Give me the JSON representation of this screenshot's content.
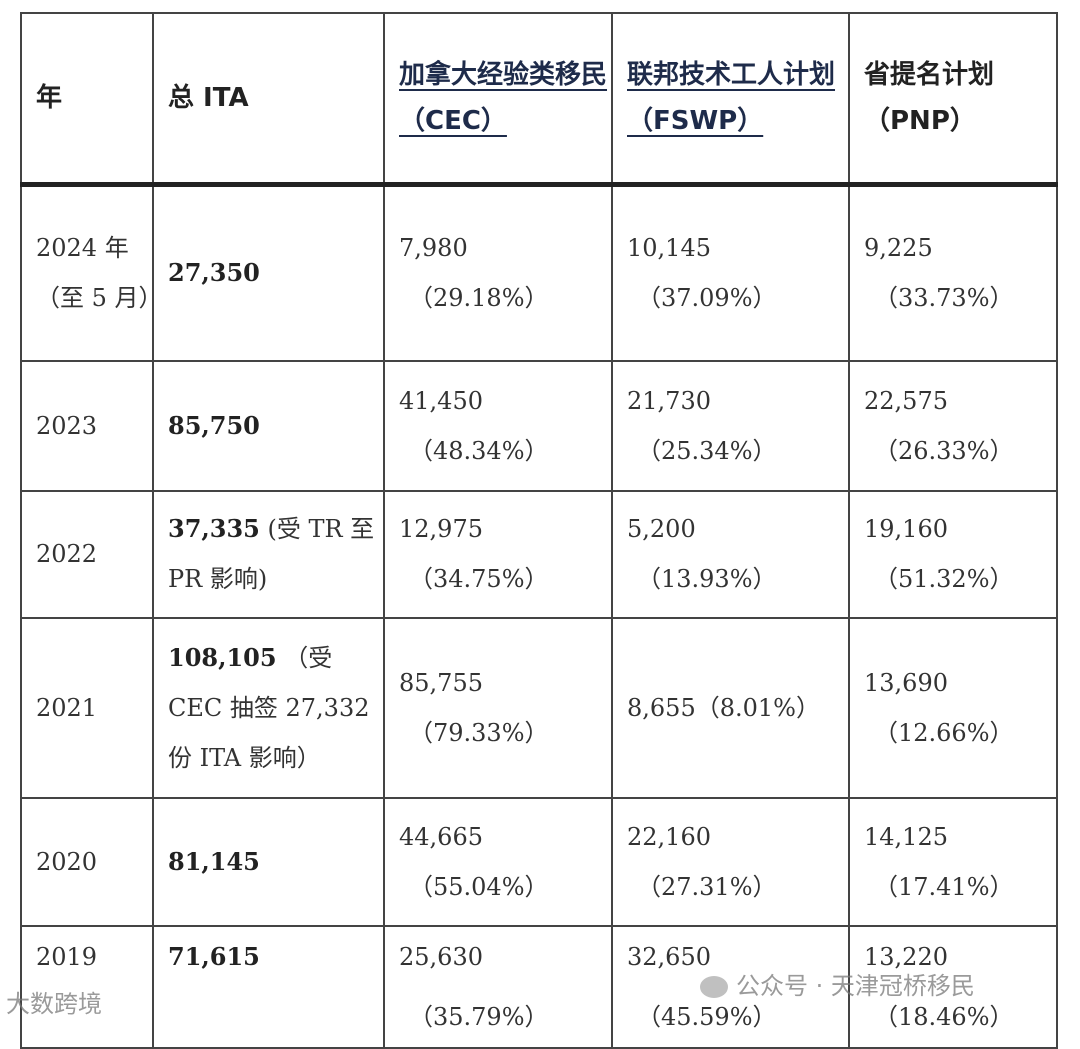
{
  "headers": {
    "year": "年",
    "total": "总 ITA",
    "cec": "加拿大经验类移民（CEC）",
    "fswp_line1": "联邦技术工人计划",
    "fswp_line2": "（FSWP）",
    "pnp_line1": "省提名计划",
    "pnp_line2": "（PNP）"
  },
  "rows": [
    {
      "year": "2024 年（至 5 月）",
      "total": "27,350",
      "total_note": "",
      "cec": "7,980",
      "cec_pct": "（29.18%）",
      "fswp": "10,145",
      "fswp_pct": "（37.09%）",
      "pnp": "9,225",
      "pnp_pct": "（33.73%）"
    },
    {
      "year": "2023",
      "total": "85,750",
      "total_note": "",
      "cec": "41,450",
      "cec_pct": "（48.34%）",
      "fswp": "21,730",
      "fswp_pct": "（25.34%）",
      "pnp": "22,575",
      "pnp_pct": "（26.33%）"
    },
    {
      "year": "2022",
      "total": "37,335",
      "total_note": " (受 TR 至 PR 影响)",
      "cec": "12,975",
      "cec_pct": "（34.75%）",
      "fswp": "5,200",
      "fswp_pct": "（13.93%）",
      "pnp": "19,160",
      "pnp_pct": "（51.32%）"
    },
    {
      "year": "2021",
      "total": "108,105",
      "total_note": " （受 CEC 抽签 27,332 份 ITA 影响）",
      "cec": "85,755",
      "cec_pct": "（79.33%）",
      "fswp": "8,655",
      "fswp_pct": "（8.01%）",
      "pnp": "13,690",
      "pnp_pct": "（12.66%）"
    },
    {
      "year": "2020",
      "total": "81,145",
      "total_note": "",
      "cec": "44,665",
      "cec_pct": "（55.04%）",
      "fswp": "22,160",
      "fswp_pct": "（27.31%）",
      "pnp": "14,125",
      "pnp_pct": "（17.41%）"
    },
    {
      "year": "2019",
      "total": "71,615",
      "total_note": "",
      "cec": "25,630",
      "cec_pct": "（35.79%）",
      "fswp": "32,650",
      "fswp_pct": "（45.59%）",
      "pnp": "13,220",
      "pnp_pct": "（18.46%）"
    }
  ],
  "watermarks": {
    "left": "大数跨境",
    "right": "公众号 · 天津冠桥移民"
  }
}
